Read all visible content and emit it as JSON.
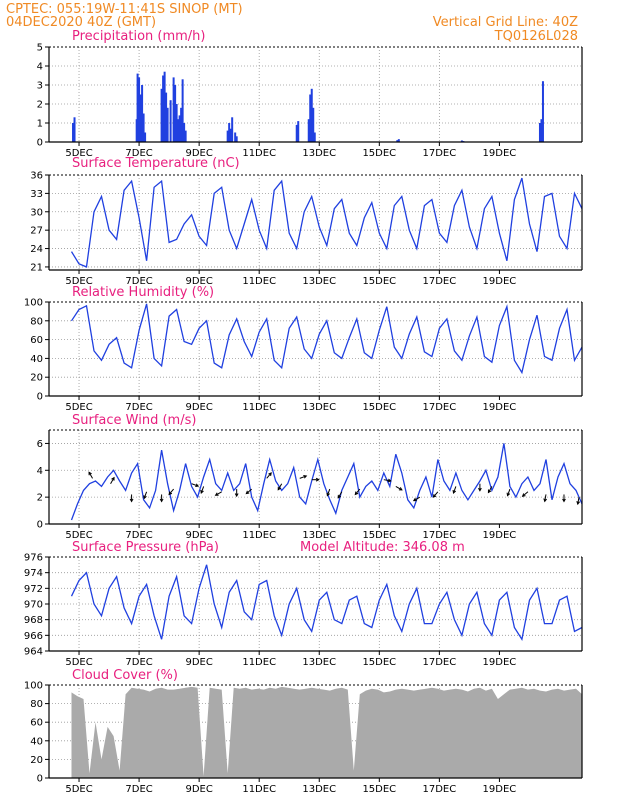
{
  "header": {
    "line1": "CPTEC:    055:19W-11:41S    SINOP (MT)",
    "line2": "04DEC2020 40Z (GMT)",
    "grid_note": "Vertical Grid Line: 40Z",
    "code": "TQ0126L028"
  },
  "colors": {
    "header": "#f08a24",
    "title": "#e8207f",
    "line": "#2040e0",
    "cloud": "#aaaaaa",
    "arrow": "#000000"
  },
  "chart_data": [
    {
      "type": "bar",
      "title": "Precipitation (mm/h)",
      "x_ticks": [
        "5DEC",
        "7DEC",
        "9DEC",
        "11DEC",
        "13DEC",
        "15DEC",
        "17DEC",
        "19DEC"
      ],
      "y_ticks": [
        "0",
        "1",
        "2",
        "3",
        "4",
        "5"
      ],
      "ylim": [
        0,
        5
      ],
      "grid": true,
      "x_unit": "day offset from start (04DEC 00Z)",
      "x": [
        0.05,
        0.1,
        2.17,
        2.2,
        2.25,
        2.3,
        2.35,
        2.4,
        2.45,
        3.0,
        3.05,
        3.1,
        3.15,
        3.2,
        3.3,
        3.4,
        3.45,
        3.5,
        3.55,
        3.6,
        3.65,
        3.7,
        3.75,
        3.8,
        5.2,
        5.25,
        5.3,
        5.35,
        5.45,
        5.5,
        7.5,
        7.55,
        7.9,
        7.95,
        8.0,
        8.05,
        8.1,
        10.85,
        10.9,
        13.0,
        13.05,
        15.6,
        15.65,
        15.7
      ],
      "values": [
        1.0,
        1.3,
        1.2,
        3.6,
        3.4,
        2.5,
        3.0,
        1.5,
        0.5,
        2.8,
        3.5,
        3.7,
        2.6,
        1.8,
        2.2,
        3.4,
        3.0,
        2.0,
        1.2,
        1.4,
        1.8,
        3.3,
        1.0,
        0.6,
        0.6,
        1.0,
        0.7,
        1.3,
        0.5,
        0.3,
        0.9,
        1.1,
        1.2,
        2.5,
        2.8,
        1.8,
        0.5,
        0.1,
        0.15,
        0.08,
        0.05,
        1.0,
        1.2,
        3.2
      ]
    },
    {
      "type": "line",
      "title": "Surface Temperature (nC)",
      "x_ticks": [
        "5DEC",
        "7DEC",
        "9DEC",
        "11DEC",
        "13DEC",
        "15DEC",
        "17DEC",
        "19DEC"
      ],
      "y_ticks": [
        "21",
        "24",
        "27",
        "30",
        "33",
        "36"
      ],
      "ylim": [
        20.5,
        36
      ],
      "grid": true,
      "x": [
        0,
        0.25,
        0.5,
        0.75,
        1.0,
        1.25,
        1.5,
        1.75,
        2.0,
        2.25,
        2.5,
        2.75,
        3.0,
        3.25,
        3.5,
        3.75,
        4.0,
        4.25,
        4.5,
        4.75,
        5.0,
        5.25,
        5.5,
        5.75,
        6.0,
        6.25,
        6.5,
        6.75,
        7.0,
        7.25,
        7.5,
        7.75,
        8.0,
        8.25,
        8.5,
        8.75,
        9.0,
        9.25,
        9.5,
        9.75,
        10.0,
        10.25,
        10.5,
        10.75,
        11.0,
        11.25,
        11.5,
        11.75,
        12.0,
        12.25,
        12.5,
        12.75,
        13.0,
        13.25,
        13.5,
        13.75,
        14.0,
        14.25,
        14.5,
        14.75,
        15.0,
        15.25,
        15.5,
        15.75,
        16.0,
        16.25,
        16.5,
        16.75,
        17.0
      ],
      "values": [
        23.5,
        21.5,
        21.0,
        30.0,
        32.5,
        27.0,
        25.5,
        33.5,
        35.0,
        29.0,
        22.0,
        34.0,
        35.0,
        25.0,
        25.5,
        28.0,
        29.5,
        26.0,
        24.5,
        33.0,
        34.0,
        27.0,
        24.0,
        28.0,
        32.0,
        27.0,
        24.0,
        33.5,
        35.0,
        26.5,
        24.0,
        30.0,
        32.5,
        27.5,
        24.5,
        30.5,
        32.0,
        26.5,
        24.5,
        29.0,
        31.5,
        26.5,
        24.0,
        31.0,
        32.5,
        27.0,
        24.0,
        31.0,
        32.0,
        26.5,
        25.0,
        31.0,
        33.5,
        27.5,
        24.0,
        30.5,
        32.5,
        26.5,
        22.0,
        32.0,
        35.5,
        28.0,
        23.5,
        32.5,
        33.0,
        26.0,
        24.0,
        33.0,
        30.5
      ]
    },
    {
      "type": "line",
      "title": "Relative Humidity (%)",
      "x_ticks": [
        "5DEC",
        "7DEC",
        "9DEC",
        "11DEC",
        "13DEC",
        "15DEC",
        "17DEC",
        "19DEC"
      ],
      "y_ticks": [
        "0",
        "20",
        "40",
        "60",
        "80",
        "100"
      ],
      "ylim": [
        0,
        100
      ],
      "grid": true,
      "x": [
        0,
        0.25,
        0.5,
        0.75,
        1.0,
        1.25,
        1.5,
        1.75,
        2.0,
        2.25,
        2.5,
        2.75,
        3.0,
        3.25,
        3.5,
        3.75,
        4.0,
        4.25,
        4.5,
        4.75,
        5.0,
        5.25,
        5.5,
        5.75,
        6.0,
        6.25,
        6.5,
        6.75,
        7.0,
        7.25,
        7.5,
        7.75,
        8.0,
        8.25,
        8.5,
        8.75,
        9.0,
        9.25,
        9.5,
        9.75,
        10.0,
        10.25,
        10.5,
        10.75,
        11.0,
        11.25,
        11.5,
        11.75,
        12.0,
        12.25,
        12.5,
        12.75,
        13.0,
        13.25,
        13.5,
        13.75,
        14.0,
        14.25,
        14.5,
        14.75,
        15.0,
        15.25,
        15.5,
        15.75,
        16.0,
        16.25,
        16.5,
        16.75,
        17.0
      ],
      "values": [
        80,
        92,
        96,
        48,
        38,
        55,
        62,
        35,
        30,
        70,
        98,
        40,
        32,
        85,
        92,
        58,
        55,
        72,
        80,
        35,
        30,
        65,
        82,
        58,
        42,
        68,
        82,
        38,
        30,
        72,
        84,
        50,
        40,
        66,
        80,
        46,
        40,
        62,
        82,
        46,
        40,
        70,
        95,
        52,
        40,
        66,
        84,
        47,
        42,
        72,
        82,
        48,
        38,
        64,
        84,
        42,
        36,
        75,
        95,
        38,
        25,
        60,
        86,
        42,
        38,
        72,
        92,
        38,
        52
      ]
    },
    {
      "type": "line",
      "title": "Surface Wind (m/s)",
      "x_ticks": [
        "5DEC",
        "7DEC",
        "9DEC",
        "11DEC",
        "13DEC",
        "15DEC",
        "17DEC",
        "19DEC"
      ],
      "y_ticks": [
        "0",
        "2",
        "4",
        "6"
      ],
      "ylim": [
        0,
        7
      ],
      "grid": true,
      "x": [
        0,
        0.2,
        0.4,
        0.6,
        0.8,
        1.0,
        1.2,
        1.4,
        1.6,
        1.8,
        2.0,
        2.2,
        2.4,
        2.6,
        2.8,
        3.0,
        3.2,
        3.4,
        3.6,
        3.8,
        4.0,
        4.2,
        4.4,
        4.6,
        4.8,
        5.0,
        5.2,
        5.4,
        5.6,
        5.8,
        6.0,
        6.2,
        6.4,
        6.6,
        6.8,
        7.0,
        7.2,
        7.4,
        7.6,
        7.8,
        8.0,
        8.2,
        8.4,
        8.6,
        8.8,
        9.0,
        9.2,
        9.4,
        9.6,
        9.8,
        10.0,
        10.2,
        10.4,
        10.6,
        10.8,
        11.0,
        11.2,
        11.4,
        11.6,
        11.8,
        12.0,
        12.2,
        12.4,
        12.6,
        12.8,
        13.0,
        13.2,
        13.4,
        13.6,
        13.8,
        14.0,
        14.2,
        14.4,
        14.6,
        14.8,
        15.0,
        15.2,
        15.4,
        15.6,
        15.8,
        16.0,
        16.2,
        16.4,
        16.6,
        16.8,
        17.0
      ],
      "values": [
        0.3,
        1.5,
        2.5,
        3.0,
        3.2,
        2.8,
        3.5,
        4.0,
        3.2,
        2.5,
        3.8,
        4.5,
        1.8,
        1.2,
        2.5,
        5.5,
        3.0,
        1.0,
        2.5,
        4.5,
        2.8,
        2.0,
        3.5,
        4.8,
        3.0,
        2.5,
        3.8,
        2.5,
        3.0,
        4.5,
        2.0,
        1.0,
        3.0,
        4.8,
        3.2,
        2.5,
        3.0,
        4.2,
        2.0,
        1.5,
        3.2,
        4.8,
        3.0,
        1.8,
        0.8,
        2.5,
        3.5,
        4.5,
        2.0,
        2.8,
        3.2,
        2.5,
        3.8,
        2.8,
        5.2,
        3.8,
        1.8,
        1.2,
        2.5,
        3.5,
        2.0,
        4.8,
        3.2,
        2.5,
        3.8,
        2.5,
        1.8,
        2.5,
        3.2,
        4.0,
        2.5,
        3.5,
        6.0,
        2.8,
        2.0,
        3.0,
        3.5,
        2.5,
        3.0,
        4.8,
        1.8,
        3.5,
        4.5,
        3.0,
        2.5,
        1.5
      ],
      "arrows": [
        {
          "x": 0.7,
          "y": 3.4,
          "dir_deg": 330
        },
        {
          "x": 1.3,
          "y": 3.0,
          "dir_deg": 30
        },
        {
          "x": 2.0,
          "y": 2.2,
          "dir_deg": 180
        },
        {
          "x": 2.5,
          "y": 2.4,
          "dir_deg": 200
        },
        {
          "x": 3.0,
          "y": 2.2,
          "dir_deg": 180
        },
        {
          "x": 3.4,
          "y": 2.6,
          "dir_deg": 220
        },
        {
          "x": 4.0,
          "y": 3.0,
          "dir_deg": 110
        },
        {
          "x": 4.4,
          "y": 2.8,
          "dir_deg": 200
        },
        {
          "x": 5.0,
          "y": 2.4,
          "dir_deg": 240
        },
        {
          "x": 5.5,
          "y": 2.6,
          "dir_deg": 180
        },
        {
          "x": 6.0,
          "y": 2.6,
          "dir_deg": 230
        },
        {
          "x": 6.5,
          "y": 3.4,
          "dir_deg": 40
        },
        {
          "x": 7.0,
          "y": 3.0,
          "dir_deg": 210
        },
        {
          "x": 7.6,
          "y": 3.4,
          "dir_deg": 70
        },
        {
          "x": 8.0,
          "y": 3.3,
          "dir_deg": 90
        },
        {
          "x": 8.6,
          "y": 2.6,
          "dir_deg": 200
        },
        {
          "x": 9.0,
          "y": 2.4,
          "dir_deg": 210
        },
        {
          "x": 9.6,
          "y": 2.6,
          "dir_deg": 220
        },
        {
          "x": 10.4,
          "y": 3.3,
          "dir_deg": 100
        },
        {
          "x": 10.8,
          "y": 2.8,
          "dir_deg": 120
        },
        {
          "x": 11.6,
          "y": 2.0,
          "dir_deg": 240
        },
        {
          "x": 12.2,
          "y": 2.4,
          "dir_deg": 220
        },
        {
          "x": 12.8,
          "y": 2.8,
          "dir_deg": 200
        },
        {
          "x": 13.6,
          "y": 3.0,
          "dir_deg": 180
        },
        {
          "x": 14.0,
          "y": 2.8,
          "dir_deg": 210
        },
        {
          "x": 14.6,
          "y": 2.6,
          "dir_deg": 200
        },
        {
          "x": 15.2,
          "y": 2.4,
          "dir_deg": 230
        },
        {
          "x": 15.8,
          "y": 2.2,
          "dir_deg": 190
        },
        {
          "x": 16.4,
          "y": 2.2,
          "dir_deg": 180
        },
        {
          "x": 16.9,
          "y": 2.0,
          "dir_deg": 190
        }
      ]
    },
    {
      "type": "line",
      "title": "Surface Pressure (hPa)",
      "annotation": "Model Altitude: 346.08 m",
      "x_ticks": [
        "5DEC",
        "7DEC",
        "9DEC",
        "11DEC",
        "13DEC",
        "15DEC",
        "17DEC",
        "19DEC"
      ],
      "y_ticks": [
        "964",
        "966",
        "968",
        "970",
        "972",
        "974",
        "976"
      ],
      "ylim": [
        964,
        976
      ],
      "grid": true,
      "x": [
        0,
        0.25,
        0.5,
        0.75,
        1.0,
        1.25,
        1.5,
        1.75,
        2.0,
        2.25,
        2.5,
        2.75,
        3.0,
        3.25,
        3.5,
        3.75,
        4.0,
        4.25,
        4.5,
        4.75,
        5.0,
        5.25,
        5.5,
        5.75,
        6.0,
        6.25,
        6.5,
        6.75,
        7.0,
        7.25,
        7.5,
        7.75,
        8.0,
        8.25,
        8.5,
        8.75,
        9.0,
        9.25,
        9.5,
        9.75,
        10.0,
        10.25,
        10.5,
        10.75,
        11.0,
        11.25,
        11.5,
        11.75,
        12.0,
        12.25,
        12.5,
        12.75,
        13.0,
        13.25,
        13.5,
        13.75,
        14.0,
        14.25,
        14.5,
        14.75,
        15.0,
        15.25,
        15.5,
        15.75,
        16.0,
        16.25,
        16.5,
        16.75,
        17.0
      ],
      "values": [
        971.0,
        973.0,
        974.0,
        970.0,
        968.5,
        972.0,
        973.5,
        969.5,
        967.5,
        971.0,
        972.5,
        968.5,
        965.5,
        971.0,
        973.5,
        968.5,
        967.5,
        972.0,
        975.0,
        970.0,
        967.0,
        971.5,
        973.0,
        969.0,
        968.0,
        972.5,
        973.0,
        968.5,
        966.0,
        970.0,
        972.0,
        968.0,
        966.5,
        970.5,
        971.5,
        968.0,
        967.5,
        970.5,
        971.0,
        967.5,
        967.0,
        970.5,
        972.5,
        968.5,
        966.5,
        970.0,
        972.0,
        967.5,
        967.5,
        970.0,
        971.5,
        968.0,
        966.0,
        970.0,
        971.5,
        967.5,
        966.0,
        970.5,
        971.5,
        967.0,
        965.5,
        970.5,
        972.0,
        967.5,
        967.5,
        970.5,
        971.0,
        966.5,
        967.0
      ]
    },
    {
      "type": "area",
      "title": "Cloud Cover (%)",
      "x_ticks": [
        "5DEC",
        "7DEC",
        "9DEC",
        "11DEC",
        "13DEC",
        "15DEC",
        "17DEC",
        "19DEC"
      ],
      "y_ticks": [
        "0",
        "20",
        "40",
        "60",
        "80",
        "100"
      ],
      "ylim": [
        0,
        100
      ],
      "grid": true,
      "x": [
        0,
        0.2,
        0.4,
        0.6,
        0.8,
        1.0,
        1.2,
        1.4,
        1.6,
        1.8,
        2.0,
        2.2,
        2.4,
        2.6,
        2.8,
        3.0,
        3.2,
        3.4,
        3.6,
        3.8,
        4.0,
        4.2,
        4.4,
        4.6,
        4.8,
        5.0,
        5.2,
        5.4,
        5.6,
        5.8,
        6.0,
        6.2,
        6.4,
        6.6,
        6.8,
        7.0,
        7.2,
        7.4,
        7.6,
        7.8,
        8.0,
        8.2,
        8.4,
        8.6,
        8.8,
        9.0,
        9.2,
        9.4,
        9.6,
        9.8,
        10.0,
        10.2,
        10.4,
        10.6,
        10.8,
        11.0,
        11.2,
        11.4,
        11.6,
        11.8,
        12.0,
        12.2,
        12.4,
        12.6,
        12.8,
        13.0,
        13.2,
        13.4,
        13.6,
        13.8,
        14.0,
        14.2,
        14.4,
        14.6,
        14.8,
        15.0,
        15.2,
        15.4,
        15.6,
        15.8,
        16.0,
        16.2,
        16.4,
        16.6,
        16.8,
        17.0
      ],
      "values": [
        92,
        88,
        85,
        5,
        60,
        20,
        55,
        45,
        8,
        90,
        97,
        96,
        95,
        93,
        96,
        97,
        95,
        95,
        96,
        97,
        98,
        97,
        2,
        97,
        96,
        95,
        5,
        97,
        96,
        97,
        95,
        96,
        95,
        97,
        96,
        98,
        97,
        96,
        95,
        96,
        97,
        96,
        95,
        94,
        96,
        97,
        95,
        8,
        90,
        94,
        96,
        95,
        92,
        93,
        95,
        96,
        95,
        94,
        95,
        96,
        97,
        96,
        94,
        95,
        96,
        95,
        93,
        96,
        97,
        94,
        96,
        85,
        90,
        95,
        96,
        97,
        95,
        96,
        94,
        93,
        95,
        96,
        94,
        95,
        96,
        90
      ]
    }
  ]
}
